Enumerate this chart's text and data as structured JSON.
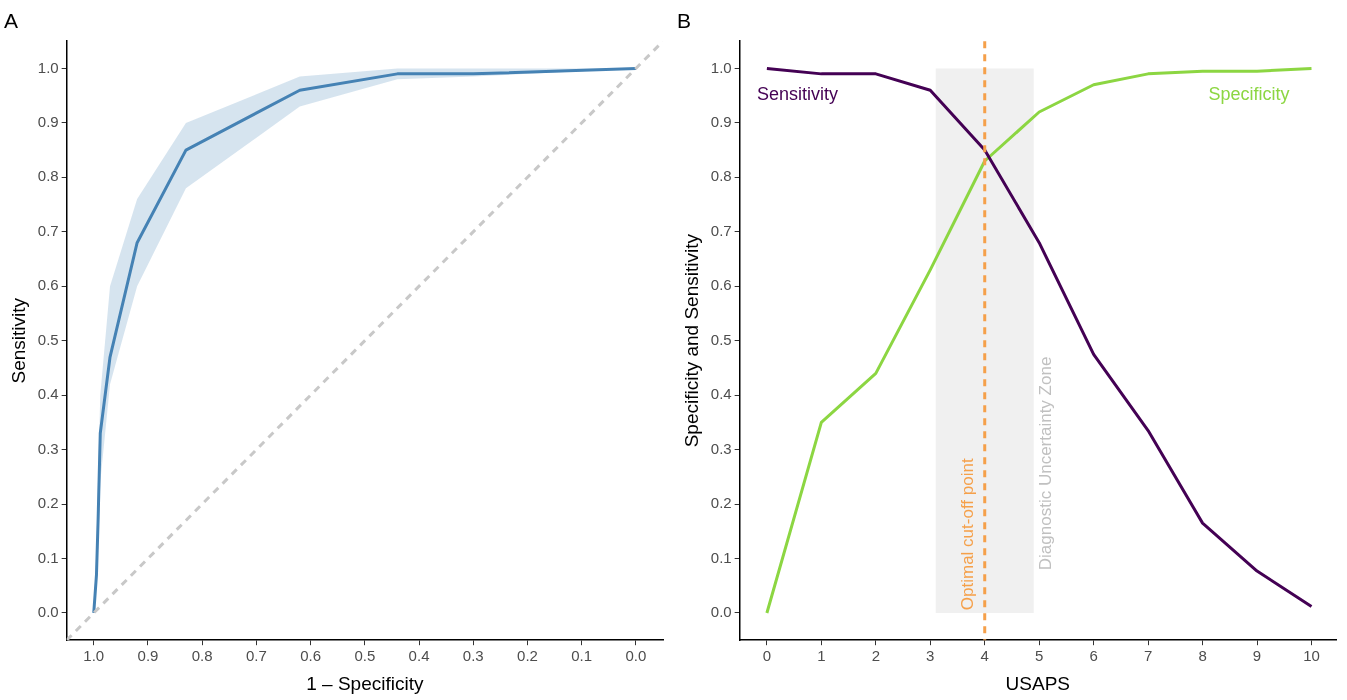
{
  "chart_data": [
    {
      "type": "line",
      "title": "A",
      "xlabel": "1 – Specificity",
      "ylabel": "Sensitivity",
      "xlim": [
        1.05,
        -0.05
      ],
      "xticks": [
        {
          "value": 1.0,
          "label": "1.0"
        },
        {
          "value": 0.9,
          "label": "0.9"
        },
        {
          "value": 0.8,
          "label": "0.8"
        },
        {
          "value": 0.7,
          "label": "0.7"
        },
        {
          "value": 0.6,
          "label": "0.6"
        },
        {
          "value": 0.5,
          "label": "0.5"
        },
        {
          "value": 0.4,
          "label": "0.4"
        },
        {
          "value": 0.3,
          "label": "0.3"
        },
        {
          "value": 0.2,
          "label": "0.2"
        },
        {
          "value": 0.1,
          "label": "0.1"
        },
        {
          "value": 0.0,
          "label": "0.0"
        }
      ],
      "ylim": [
        -0.05,
        1.05
      ],
      "yticks": [
        {
          "value": 0.0,
          "label": "0.0"
        },
        {
          "value": 0.1,
          "label": "0.1"
        },
        {
          "value": 0.2,
          "label": "0.2"
        },
        {
          "value": 0.3,
          "label": "0.3"
        },
        {
          "value": 0.4,
          "label": "0.4"
        },
        {
          "value": 0.5,
          "label": "0.5"
        },
        {
          "value": 0.6,
          "label": "0.6"
        },
        {
          "value": 0.7,
          "label": "0.7"
        },
        {
          "value": 0.8,
          "label": "0.8"
        },
        {
          "value": 0.9,
          "label": "0.9"
        },
        {
          "value": 1.0,
          "label": "1.0"
        }
      ],
      "grid": false,
      "legend": false,
      "series": [
        {
          "color": "#c8c8c8",
          "line_style": "dashed",
          "x": [
            1.05,
            -0.05
          ],
          "values": [
            -0.05,
            1.05
          ]
        },
        {
          "color": "#4682b4",
          "x": [
            1.0,
            0.995,
            0.992,
            0.988,
            0.97,
            0.92,
            0.83,
            0.62,
            0.44,
            0.3,
            0.0
          ],
          "values": [
            0.0,
            0.07,
            0.17,
            0.33,
            0.47,
            0.68,
            0.85,
            0.96,
            0.99,
            0.99,
            1.0
          ],
          "lower": [
            0.0,
            0.05,
            0.12,
            0.24,
            0.42,
            0.6,
            0.78,
            0.93,
            0.98,
            0.985,
            1.0
          ],
          "upper": [
            0.0,
            0.12,
            0.25,
            0.4,
            0.6,
            0.76,
            0.9,
            0.985,
            1.0,
            1.0,
            1.0
          ]
        }
      ]
    },
    {
      "type": "line",
      "title": "B",
      "xlabel": "USAPS",
      "ylabel": "Specificity and Sensitivity",
      "x": [
        0,
        1,
        2,
        3,
        4,
        5,
        6,
        7,
        8,
        9,
        10
      ],
      "xlim": [
        -0.5,
        10.45
      ],
      "xticks": [
        0,
        1,
        2,
        3,
        4,
        5,
        6,
        7,
        8,
        9,
        10
      ],
      "ylim": [
        -0.05,
        1.05
      ],
      "yticks": [
        {
          "value": 0.0,
          "label": "0.0"
        },
        {
          "value": 0.1,
          "label": "0.1"
        },
        {
          "value": 0.2,
          "label": "0.2"
        },
        {
          "value": 0.3,
          "label": "0.3"
        },
        {
          "value": 0.4,
          "label": "0.4"
        },
        {
          "value": 0.5,
          "label": "0.5"
        },
        {
          "value": 0.6,
          "label": "0.6"
        },
        {
          "value": 0.7,
          "label": "0.7"
        },
        {
          "value": 0.8,
          "label": "0.8"
        },
        {
          "value": 0.9,
          "label": "0.9"
        },
        {
          "value": 1.0,
          "label": "1.0"
        }
      ],
      "grid": false,
      "legend": false,
      "bands": [
        {
          "axis": "x",
          "from": 3.1,
          "to": 4.9,
          "label": "Diagnostic Uncertainty Zone",
          "color": "#f0f0f0"
        }
      ],
      "ref_lines": [
        {
          "axis": "x",
          "value": 4,
          "label": "Optimal cut-off point",
          "color": "#f5a04a",
          "line_style": "dashed"
        }
      ],
      "series": [
        {
          "name": "Sensitivity",
          "color": "#440154",
          "values": [
            1.0,
            0.99,
            0.99,
            0.96,
            0.85,
            0.68,
            0.475,
            0.335,
            0.165,
            0.077,
            0.012
          ]
        },
        {
          "name": "Specificity",
          "color": "#8cd642",
          "values": [
            0.0,
            0.35,
            0.44,
            0.63,
            0.83,
            0.92,
            0.97,
            0.99,
            0.995,
            0.995,
            1.0
          ]
        }
      ]
    }
  ]
}
